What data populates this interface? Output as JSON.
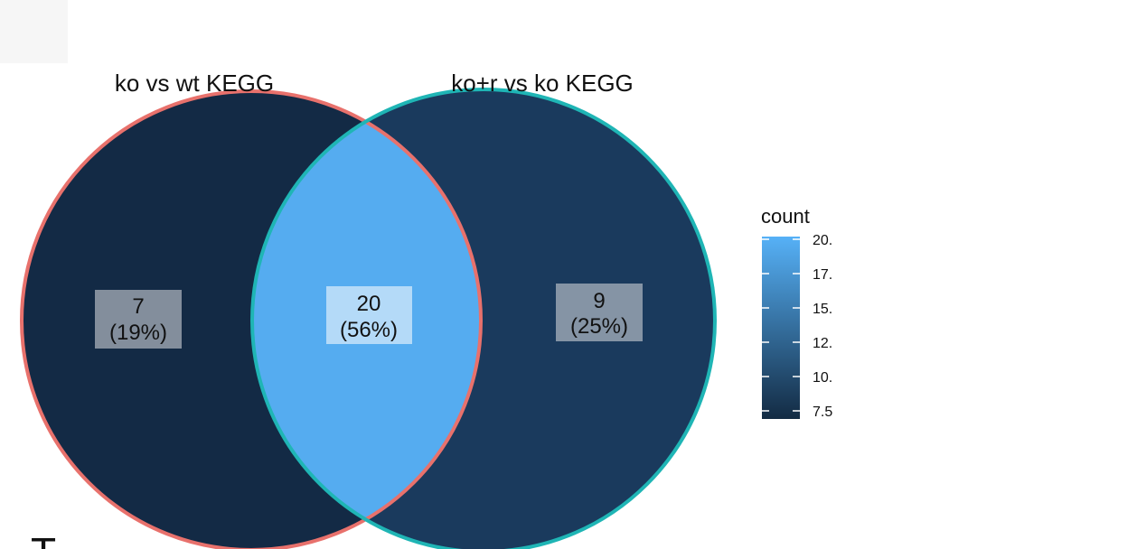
{
  "venn": {
    "sets": [
      {
        "name": "ko vs wt KEGG",
        "border_color": "#e8716c"
      },
      {
        "name": "ko+r vs ko KEGG",
        "border_color": "#1fb5b5"
      }
    ],
    "regions": [
      {
        "id": "left-only",
        "count": "7",
        "percent": "(19%)",
        "value": 7,
        "fill": "#132a45"
      },
      {
        "id": "intersection",
        "count": "20",
        "percent": "(56%)",
        "value": 20,
        "fill": "#55acf0"
      },
      {
        "id": "right-only",
        "count": "9",
        "percent": "(25%)",
        "value": 9,
        "fill": "#1a3a5d"
      }
    ]
  },
  "legend": {
    "title": "count",
    "ticks": [
      "20.",
      "17.",
      "15.",
      "12.",
      "10.",
      "7.5"
    ],
    "gradient": {
      "low": "#132b43",
      "high": "#56b1f7"
    }
  },
  "bottom_fragment": "T"
}
